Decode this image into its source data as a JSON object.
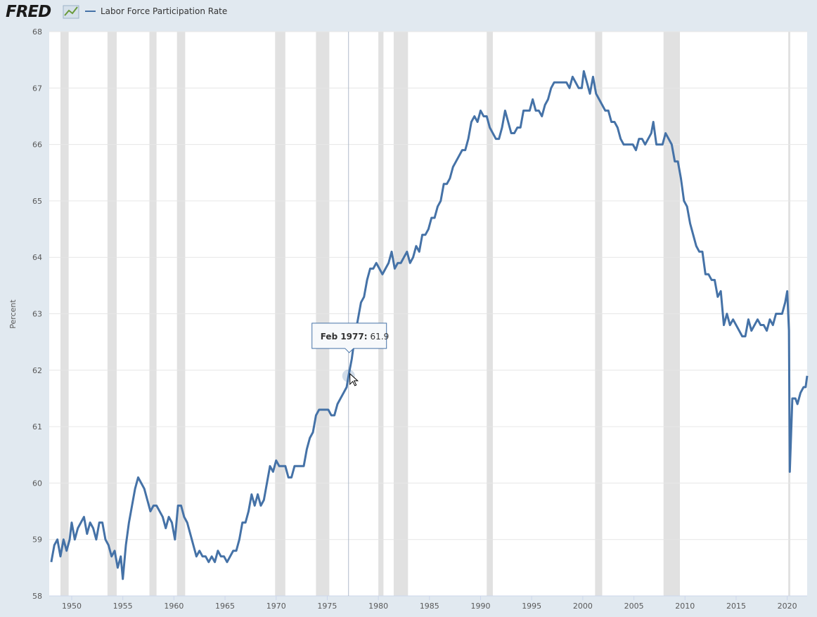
{
  "chart_data": {
    "type": "line",
    "logo": "FRED",
    "ylabel": "Percent",
    "xlim": [
      1947.8,
      2021.95
    ],
    "ylim": [
      58,
      68
    ],
    "xticks": [
      1950,
      1955,
      1960,
      1965,
      1970,
      1975,
      1980,
      1985,
      1990,
      1995,
      2000,
      2005,
      2010,
      2015,
      2020
    ],
    "yticks": [
      58,
      59,
      60,
      61,
      62,
      63,
      64,
      65,
      66,
      67,
      68
    ],
    "grid": true,
    "recession_color": "#e1e1e1",
    "recessions": [
      [
        1948.9,
        1949.7
      ],
      [
        1953.5,
        1954.4
      ],
      [
        1957.6,
        1958.3
      ],
      [
        1960.3,
        1961.1
      ],
      [
        1969.9,
        1970.9
      ],
      [
        1973.9,
        1975.2
      ],
      [
        1980.0,
        1980.5
      ],
      [
        1981.5,
        1982.9
      ],
      [
        1990.6,
        1991.2
      ],
      [
        2001.2,
        2001.9
      ],
      [
        2007.9,
        2009.5
      ],
      [
        2020.1,
        2020.3
      ]
    ],
    "tooltip": {
      "label": "Feb 1977:",
      "x": 1977.083,
      "value": 61.9
    },
    "series": [
      {
        "name": "Labor Force Participation Rate",
        "color": "#4572a7",
        "x": [
          1948.0,
          1948.3,
          1948.6,
          1948.9,
          1949.2,
          1949.5,
          1949.8,
          1950.0,
          1950.3,
          1950.6,
          1950.9,
          1951.2,
          1951.5,
          1951.8,
          1952.1,
          1952.4,
          1952.7,
          1953.0,
          1953.3,
          1953.6,
          1953.9,
          1954.2,
          1954.5,
          1954.8,
          1955.0,
          1955.3,
          1955.6,
          1955.9,
          1956.2,
          1956.5,
          1956.8,
          1957.1,
          1957.4,
          1957.7,
          1958.0,
          1958.3,
          1958.6,
          1958.9,
          1959.2,
          1959.5,
          1959.8,
          1960.1,
          1960.4,
          1960.7,
          1961.0,
          1961.3,
          1961.6,
          1961.9,
          1962.2,
          1962.5,
          1962.8,
          1963.1,
          1963.4,
          1963.7,
          1964.0,
          1964.3,
          1964.6,
          1964.9,
          1965.2,
          1965.5,
          1965.8,
          1966.1,
          1966.4,
          1966.7,
          1967.0,
          1967.3,
          1967.6,
          1967.9,
          1968.2,
          1968.5,
          1968.8,
          1969.1,
          1969.4,
          1969.7,
          1970.0,
          1970.3,
          1970.6,
          1970.9,
          1971.2,
          1971.5,
          1971.8,
          1972.1,
          1972.4,
          1972.7,
          1973.0,
          1973.3,
          1973.6,
          1973.9,
          1974.2,
          1974.5,
          1974.8,
          1975.1,
          1975.4,
          1975.7,
          1976.0,
          1976.3,
          1976.6,
          1976.9,
          1977.083,
          1977.4,
          1977.7,
          1978.0,
          1978.3,
          1978.6,
          1978.9,
          1979.2,
          1979.5,
          1979.8,
          1980.1,
          1980.4,
          1980.7,
          1981.0,
          1981.3,
          1981.6,
          1981.9,
          1982.2,
          1982.5,
          1982.8,
          1983.1,
          1983.4,
          1983.7,
          1984.0,
          1984.3,
          1984.6,
          1984.9,
          1985.2,
          1985.5,
          1985.8,
          1986.1,
          1986.4,
          1986.7,
          1987.0,
          1987.3,
          1987.6,
          1987.9,
          1988.2,
          1988.5,
          1988.8,
          1989.1,
          1989.4,
          1989.7,
          1990.0,
          1990.3,
          1990.6,
          1990.9,
          1991.2,
          1991.5,
          1991.8,
          1992.1,
          1992.4,
          1992.7,
          1993.0,
          1993.3,
          1993.6,
          1993.9,
          1994.2,
          1994.5,
          1994.8,
          1995.1,
          1995.4,
          1995.7,
          1996.0,
          1996.3,
          1996.6,
          1996.9,
          1997.2,
          1997.5,
          1997.8,
          1998.1,
          1998.4,
          1998.7,
          1999.0,
          1999.3,
          1999.6,
          1999.9,
          2000.1,
          2000.4,
          2000.7,
          2001.0,
          2001.3,
          2001.6,
          2001.9,
          2002.2,
          2002.5,
          2002.8,
          2003.1,
          2003.4,
          2003.7,
          2004.0,
          2004.3,
          2004.6,
          2004.9,
          2005.2,
          2005.5,
          2005.8,
          2006.1,
          2006.4,
          2006.7,
          2006.9,
          2007.2,
          2007.5,
          2007.8,
          2008.1,
          2008.4,
          2008.7,
          2009.0,
          2009.3,
          2009.6,
          2009.9,
          2010.2,
          2010.5,
          2010.8,
          2011.1,
          2011.4,
          2011.7,
          2012.0,
          2012.3,
          2012.6,
          2012.9,
          2013.2,
          2013.5,
          2013.8,
          2014.1,
          2014.4,
          2014.7,
          2015.0,
          2015.3,
          2015.6,
          2015.9,
          2016.2,
          2016.5,
          2016.8,
          2017.1,
          2017.4,
          2017.7,
          2018.0,
          2018.3,
          2018.6,
          2018.9,
          2019.2,
          2019.5,
          2019.8,
          2020.0,
          2020.17,
          2020.25,
          2020.5,
          2020.8,
          2021.0,
          2021.3,
          2021.6,
          2021.8,
          2021.95
        ],
        "values": [
          58.6,
          58.9,
          59.0,
          58.7,
          59.0,
          58.8,
          59.0,
          59.3,
          59.0,
          59.2,
          59.3,
          59.4,
          59.1,
          59.3,
          59.2,
          59.0,
          59.3,
          59.3,
          59.0,
          58.9,
          58.7,
          58.8,
          58.5,
          58.7,
          58.3,
          58.9,
          59.3,
          59.6,
          59.9,
          60.1,
          60.0,
          59.9,
          59.7,
          59.5,
          59.6,
          59.6,
          59.5,
          59.4,
          59.2,
          59.4,
          59.3,
          59.0,
          59.6,
          59.6,
          59.4,
          59.3,
          59.1,
          58.9,
          58.7,
          58.8,
          58.7,
          58.7,
          58.6,
          58.7,
          58.6,
          58.8,
          58.7,
          58.7,
          58.6,
          58.7,
          58.8,
          58.8,
          59.0,
          59.3,
          59.3,
          59.5,
          59.8,
          59.6,
          59.8,
          59.6,
          59.7,
          60.0,
          60.3,
          60.2,
          60.4,
          60.3,
          60.3,
          60.3,
          60.1,
          60.1,
          60.3,
          60.3,
          60.3,
          60.3,
          60.6,
          60.8,
          60.9,
          61.2,
          61.3,
          61.3,
          61.3,
          61.3,
          61.2,
          61.2,
          61.4,
          61.5,
          61.6,
          61.7,
          61.9,
          62.2,
          62.6,
          62.9,
          63.2,
          63.3,
          63.6,
          63.8,
          63.8,
          63.9,
          63.8,
          63.7,
          63.8,
          63.9,
          64.1,
          63.8,
          63.9,
          63.9,
          64.0,
          64.1,
          63.9,
          64.0,
          64.2,
          64.1,
          64.4,
          64.4,
          64.5,
          64.7,
          64.7,
          64.9,
          65.0,
          65.3,
          65.3,
          65.4,
          65.6,
          65.7,
          65.8,
          65.9,
          65.9,
          66.1,
          66.4,
          66.5,
          66.4,
          66.6,
          66.5,
          66.5,
          66.3,
          66.2,
          66.1,
          66.1,
          66.3,
          66.6,
          66.4,
          66.2,
          66.2,
          66.3,
          66.3,
          66.6,
          66.6,
          66.6,
          66.8,
          66.6,
          66.6,
          66.5,
          66.7,
          66.8,
          67.0,
          67.1,
          67.1,
          67.1,
          67.1,
          67.1,
          67.0,
          67.2,
          67.1,
          67.0,
          67.0,
          67.3,
          67.1,
          66.9,
          67.2,
          66.9,
          66.8,
          66.7,
          66.6,
          66.6,
          66.4,
          66.4,
          66.3,
          66.1,
          66.0,
          66.0,
          66.0,
          66.0,
          65.9,
          66.1,
          66.1,
          66.0,
          66.1,
          66.2,
          66.4,
          66.0,
          66.0,
          66.0,
          66.2,
          66.1,
          66.0,
          65.7,
          65.7,
          65.4,
          65.0,
          64.9,
          64.6,
          64.4,
          64.2,
          64.1,
          64.1,
          63.7,
          63.7,
          63.6,
          63.6,
          63.3,
          63.4,
          62.8,
          63.0,
          62.8,
          62.9,
          62.8,
          62.7,
          62.6,
          62.6,
          62.9,
          62.7,
          62.8,
          62.9,
          62.8,
          62.8,
          62.7,
          62.9,
          62.8,
          63.0,
          63.0,
          63.0,
          63.2,
          63.4,
          62.7,
          60.2,
          61.5,
          61.5,
          61.4,
          61.6,
          61.7,
          61.7,
          61.9
        ]
      }
    ]
  }
}
